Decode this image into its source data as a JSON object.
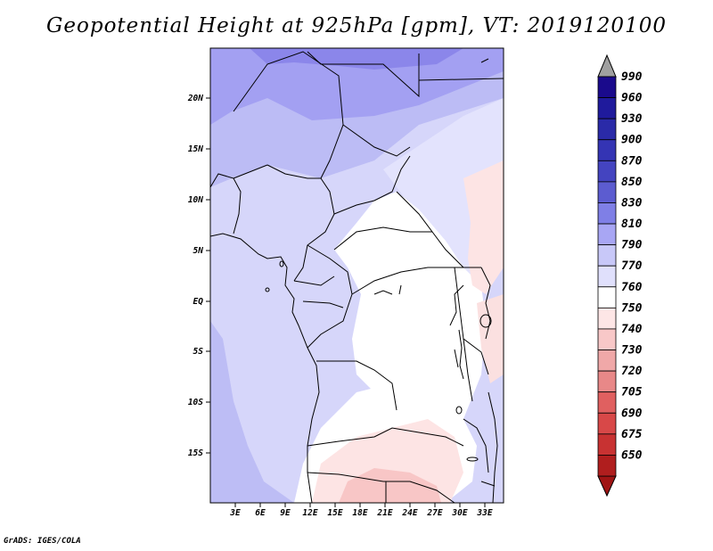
{
  "title": "Geopotential Height at 925hPa [gpm], VT: 2019120100",
  "credit": "GrADS: IGES/COLA",
  "map": {
    "lat_ticks": [
      "20N",
      "15N",
      "10N",
      "5N",
      "EQ",
      "5S",
      "10S",
      "15S"
    ],
    "lon_ticks": [
      "3E",
      "6E",
      "9E",
      "12E",
      "15E",
      "18E",
      "21E",
      "24E",
      "27E",
      "30E",
      "33E"
    ]
  },
  "colorbar": {
    "levels": [
      {
        "label": "990",
        "color": "#1a0a8c"
      },
      {
        "label": "960",
        "color": "#1f1a9c"
      },
      {
        "label": "930",
        "color": "#2a2aa8"
      },
      {
        "label": "900",
        "color": "#3434b4"
      },
      {
        "label": "870",
        "color": "#4444c0"
      },
      {
        "label": "850",
        "color": "#5c5cd0"
      },
      {
        "label": "830",
        "color": "#7f7fe6"
      },
      {
        "label": "810",
        "color": "#a8a6f4"
      },
      {
        "label": "790",
        "color": "#c8c8f8"
      },
      {
        "label": "770",
        "color": "#e0e0fc"
      },
      {
        "label": "760",
        "color": "#ffffff"
      },
      {
        "label": "750",
        "color": "#fde6e6"
      },
      {
        "label": "740",
        "color": "#f8c8c8"
      },
      {
        "label": "730",
        "color": "#f0a8a8"
      },
      {
        "label": "720",
        "color": "#e88888"
      },
      {
        "label": "705",
        "color": "#e06060"
      },
      {
        "label": "690",
        "color": "#d84848"
      },
      {
        "label": "675",
        "color": "#c83232"
      },
      {
        "label": "650",
        "color": "#b01e1e"
      }
    ],
    "top_arrow_color": "#a0a0a0",
    "bottom_arrow_color": "#a01414"
  }
}
